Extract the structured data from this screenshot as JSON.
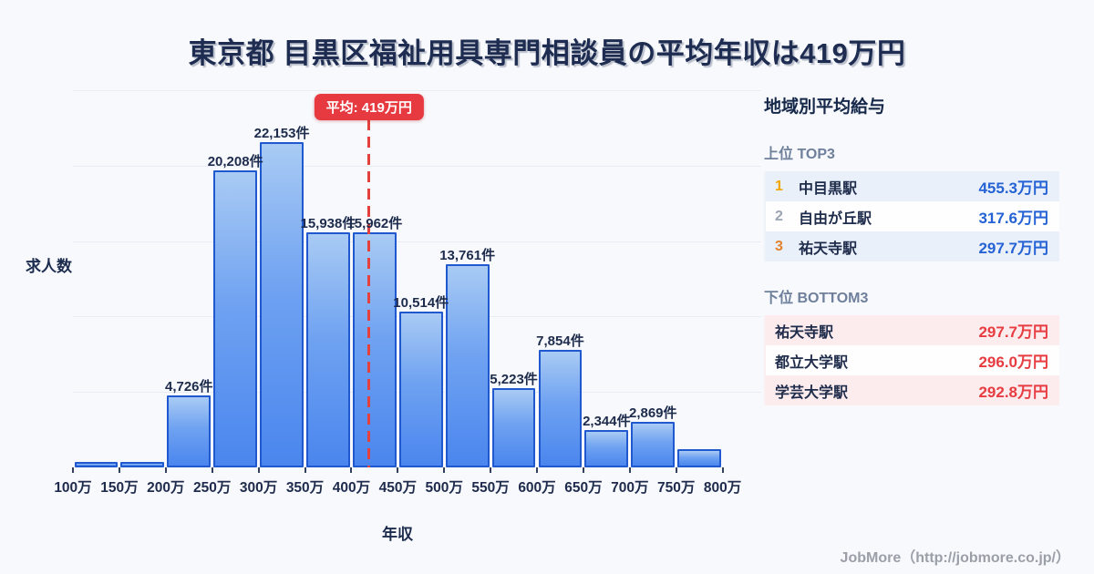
{
  "title": "東京都 目黒区福祉用具専門相談員の平均年収は419万円",
  "chart_data": {
    "type": "bar",
    "title": "東京都 目黒区福祉用具専門相談員の平均年収は419万円",
    "xlabel": "年収",
    "ylabel": "求人数",
    "x_tick_labels": [
      "100万",
      "150万",
      "200万",
      "250万",
      "300万",
      "350万",
      "400万",
      "450万",
      "500万",
      "550万",
      "600万",
      "650万",
      "700万",
      "750万",
      "800万"
    ],
    "bin_starts_man_yen": [
      100,
      150,
      200,
      250,
      300,
      350,
      400,
      450,
      500,
      550,
      600,
      650,
      700,
      750
    ],
    "bin_width_man_yen": 50,
    "values": [
      120,
      120,
      4726,
      20208,
      22153,
      15938,
      15962,
      10514,
      13761,
      5223,
      7854,
      2344,
      2869,
      1000
    ],
    "bar_labels": [
      "",
      "",
      "4,726件",
      "20,208件",
      "22,153件",
      "15,938件",
      "15,962件",
      "10,514件",
      "13,761件",
      "5,223件",
      "7,854件",
      "2,344件",
      "2,869件",
      ""
    ],
    "average": {
      "label": "平均: 419万円",
      "value_man_yen": 419
    },
    "ylim": [
      0,
      26000
    ],
    "grid": true,
    "legend_position": "none"
  },
  "sidebar": {
    "heading": "地域別平均給与",
    "top3": {
      "heading": "上位 TOP3",
      "rows": [
        {
          "rank": "1",
          "name": "中目黒駅",
          "value": "455.3万円"
        },
        {
          "rank": "2",
          "name": "自由が丘駅",
          "value": "317.6万円"
        },
        {
          "rank": "3",
          "name": "祐天寺駅",
          "value": "297.7万円"
        }
      ]
    },
    "bottom3": {
      "heading": "下位 BOTTOM3",
      "rows": [
        {
          "name": "祐天寺駅",
          "value": "297.7万円"
        },
        {
          "name": "都立大学駅",
          "value": "296.0万円"
        },
        {
          "name": "学芸大学駅",
          "value": "292.8万円"
        }
      ]
    }
  },
  "footer": {
    "credit": "JobMore（http://jobmore.co.jp/）"
  },
  "colors": {
    "background": "#f7f9fc",
    "title_text": "#1d2c50",
    "bar_gradient_top": "#a9cbf4",
    "bar_gradient_bottom": "#4a86ee",
    "bar_border": "#2058cf",
    "average_line": "#e4403e",
    "average_badge_bg": "#e63940",
    "top_value_blue": "#2563d4",
    "bottom_value_red": "#e73c41",
    "rank1_gold": "#f0a500",
    "rank2_gray": "#9aa4b2",
    "rank3_bronze": "#e2822e",
    "row_alt_blue": "#e9f0fa",
    "row_alt_pink": "#fcecee",
    "subheading_text": "#6f809c",
    "footer_text": "#9b9fa8",
    "gridline": "#e8edf5"
  }
}
